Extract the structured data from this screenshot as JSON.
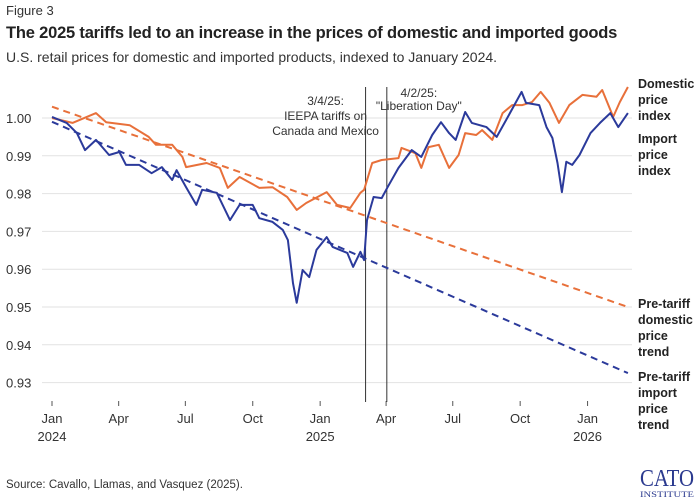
{
  "figure_label": "Figure 3",
  "title": "The 2025 tariffs led to an increase in the prices of domestic and imported goods",
  "subtitle": "U.S. retail prices for domestic and imported products, indexed to January 2024.",
  "source": "Source: Cavallo, Llamas, and Vasquez (2025).",
  "logo": {
    "line1": "CATO",
    "line2": "INSTITUTE",
    "color": "#2B3A8F"
  },
  "chart_data": {
    "type": "line",
    "title": "The 2025 tariffs led to an increase in the prices of domestic and imported goods",
    "xlabel": "",
    "ylabel": "",
    "ylim": [
      0.925,
      1.01
    ],
    "grid": true,
    "legend": "direct labels at right",
    "y_ticks": [
      {
        "value": 1.0,
        "label": "1.00"
      },
      {
        "value": 0.99,
        "label": "0.99"
      },
      {
        "value": 0.98,
        "label": "0.98"
      },
      {
        "value": 0.97,
        "label": "0.97"
      },
      {
        "value": 0.96,
        "label": "0.96"
      },
      {
        "value": 0.95,
        "label": "0.95"
      },
      {
        "value": 0.94,
        "label": "0.94"
      },
      {
        "value": 0.93,
        "label": "0.93"
      }
    ],
    "x_ticks": [
      {
        "date": "2024-01-01",
        "label": "Jan",
        "year": "2024"
      },
      {
        "date": "2024-04-01",
        "label": "Apr",
        "year": ""
      },
      {
        "date": "2024-07-01",
        "label": "Jul",
        "year": ""
      },
      {
        "date": "2024-10-01",
        "label": "Oct",
        "year": ""
      },
      {
        "date": "2025-01-01",
        "label": "Jan",
        "year": "2025"
      },
      {
        "date": "2025-04-01",
        "label": "Apr",
        "year": ""
      },
      {
        "date": "2025-07-01",
        "label": "Jul",
        "year": ""
      },
      {
        "date": "2025-10-01",
        "label": "Oct",
        "year": ""
      },
      {
        "date": "2026-01-01",
        "label": "Jan",
        "year": "2026"
      }
    ],
    "annotations": [
      {
        "date": "2025-03-04",
        "lines": [
          "3/4/25:",
          "IEEPA tariffs on",
          "Canada and Mexico"
        ]
      },
      {
        "date": "2025-04-02",
        "lines": [
          "4/2/25:",
          "\"Liberation Day\""
        ]
      }
    ],
    "series": [
      {
        "name": "Domestic price index",
        "label_lines": [
          "Domestic",
          "price",
          "index"
        ],
        "color": "#E8703A",
        "style": "solid",
        "points": [
          [
            "2024-01-01",
            1.0
          ],
          [
            "2024-01-29",
            0.9987
          ],
          [
            "2024-03-01",
            1.0013
          ],
          [
            "2024-03-15",
            0.9989
          ],
          [
            "2024-04-16",
            0.9981
          ],
          [
            "2024-05-12",
            0.995
          ],
          [
            "2024-05-22",
            0.9929
          ],
          [
            "2024-06-13",
            0.9929
          ],
          [
            "2024-06-27",
            0.9897
          ],
          [
            "2024-07-02",
            0.987
          ],
          [
            "2024-07-30",
            0.9881
          ],
          [
            "2024-08-17",
            0.9868
          ],
          [
            "2024-08-28",
            0.9815
          ],
          [
            "2024-09-13",
            0.9844
          ],
          [
            "2024-10-10",
            0.9815
          ],
          [
            "2024-10-28",
            0.9817
          ],
          [
            "2024-11-17",
            0.9791
          ],
          [
            "2024-11-30",
            0.9757
          ],
          [
            "2024-12-13",
            0.9775
          ],
          [
            "2025-01-10",
            0.9804
          ],
          [
            "2025-01-24",
            0.977
          ],
          [
            "2025-02-11",
            0.9762
          ],
          [
            "2025-02-25",
            0.9802
          ],
          [
            "2025-03-02",
            0.981
          ],
          [
            "2025-03-13",
            0.9881
          ],
          [
            "2025-03-26",
            0.9889
          ],
          [
            "2025-04-18",
            0.9894
          ],
          [
            "2025-04-22",
            0.9921
          ],
          [
            "2025-05-11",
            0.9907
          ],
          [
            "2025-05-19",
            0.9868
          ],
          [
            "2025-05-29",
            0.9923
          ],
          [
            "2025-06-12",
            0.9929
          ],
          [
            "2025-06-26",
            0.9868
          ],
          [
            "2025-07-09",
            0.9902
          ],
          [
            "2025-07-18",
            0.996
          ],
          [
            "2025-08-02",
            0.9955
          ],
          [
            "2025-08-10",
            0.9968
          ],
          [
            "2025-08-24",
            0.9942
          ],
          [
            "2025-09-07",
            1.0013
          ],
          [
            "2025-09-20",
            1.0034
          ],
          [
            "2025-10-04",
            1.0034
          ],
          [
            "2025-10-17",
            1.0042
          ],
          [
            "2025-10-29",
            1.0069
          ],
          [
            "2025-11-10",
            1.004
          ],
          [
            "2025-11-23",
            0.9987
          ],
          [
            "2025-12-07",
            1.0034
          ],
          [
            "2025-12-25",
            1.0061
          ],
          [
            "2026-01-13",
            1.0056
          ],
          [
            "2026-01-21",
            1.0074
          ],
          [
            "2026-02-05",
            1.0003
          ],
          [
            "2026-02-14",
            1.0042
          ],
          [
            "2026-02-25",
            1.0082
          ]
        ]
      },
      {
        "name": "Import price index",
        "label_lines": [
          "Import",
          "price",
          "index"
        ],
        "color": "#2B3A9B",
        "style": "solid",
        "points": [
          [
            "2024-01-01",
            1.0003
          ],
          [
            "2024-01-21",
            0.9987
          ],
          [
            "2024-02-04",
            0.996
          ],
          [
            "2024-02-15",
            0.9915
          ],
          [
            "2024-03-01",
            0.9942
          ],
          [
            "2024-03-19",
            0.9902
          ],
          [
            "2024-04-02",
            0.991
          ],
          [
            "2024-04-11",
            0.9876
          ],
          [
            "2024-04-29",
            0.9876
          ],
          [
            "2024-05-16",
            0.9854
          ],
          [
            "2024-05-30",
            0.987
          ],
          [
            "2024-06-13",
            0.9836
          ],
          [
            "2024-06-19",
            0.9862
          ],
          [
            "2024-07-02",
            0.9817
          ],
          [
            "2024-07-16",
            0.977
          ],
          [
            "2024-07-24",
            0.981
          ],
          [
            "2024-08-13",
            0.9802
          ],
          [
            "2024-08-31",
            0.973
          ],
          [
            "2024-09-13",
            0.977
          ],
          [
            "2024-10-01",
            0.977
          ],
          [
            "2024-10-10",
            0.9735
          ],
          [
            "2024-10-28",
            0.9725
          ],
          [
            "2024-11-11",
            0.9704
          ],
          [
            "2024-11-18",
            0.9677
          ],
          [
            "2024-11-25",
            0.9563
          ],
          [
            "2024-11-30",
            0.9511
          ],
          [
            "2024-12-08",
            0.9598
          ],
          [
            "2024-12-17",
            0.9579
          ],
          [
            "2024-12-27",
            0.9651
          ],
          [
            "2025-01-10",
            0.9685
          ],
          [
            "2025-01-18",
            0.9659
          ],
          [
            "2025-02-07",
            0.9643
          ],
          [
            "2025-02-15",
            0.9606
          ],
          [
            "2025-02-25",
            0.9646
          ],
          [
            "2025-03-02",
            0.9624
          ],
          [
            "2025-03-06",
            0.973
          ],
          [
            "2025-03-15",
            0.9791
          ],
          [
            "2025-03-26",
            0.9788
          ],
          [
            "2025-04-03",
            0.9817
          ],
          [
            "2025-04-18",
            0.9868
          ],
          [
            "2025-05-06",
            0.9915
          ],
          [
            "2025-05-19",
            0.9897
          ],
          [
            "2025-06-03",
            0.9955
          ],
          [
            "2025-06-15",
            0.9989
          ],
          [
            "2025-06-26",
            0.996
          ],
          [
            "2025-07-05",
            0.9942
          ],
          [
            "2025-07-18",
            1.0016
          ],
          [
            "2025-07-27",
            0.9987
          ],
          [
            "2025-08-16",
            0.9976
          ],
          [
            "2025-08-30",
            0.995
          ],
          [
            "2025-09-12",
            0.9995
          ],
          [
            "2025-10-03",
            1.0069
          ],
          [
            "2025-10-09",
            1.004
          ],
          [
            "2025-10-27",
            1.0034
          ],
          [
            "2025-11-06",
            0.9976
          ],
          [
            "2025-11-14",
            0.9947
          ],
          [
            "2025-11-21",
            0.9881
          ],
          [
            "2025-11-27",
            0.9804
          ],
          [
            "2025-12-03",
            0.9884
          ],
          [
            "2025-12-11",
            0.9876
          ],
          [
            "2025-12-21",
            0.9902
          ],
          [
            "2026-01-05",
            0.996
          ],
          [
            "2026-01-18",
            0.9987
          ],
          [
            "2026-02-01",
            1.0013
          ],
          [
            "2026-02-12",
            0.9976
          ],
          [
            "2026-02-25",
            1.0013
          ]
        ]
      },
      {
        "name": "Pre-tariff domestic price trend",
        "label_lines": [
          "Pre-tariff",
          "domestic",
          "price",
          "trend"
        ],
        "color": "#E8703A",
        "style": "dashed",
        "points": [
          [
            "2024-01-01",
            1.003
          ],
          [
            "2026-02-25",
            0.95
          ]
        ]
      },
      {
        "name": "Pre-tariff import price trend",
        "label_lines": [
          "Pre-tariff",
          "import",
          "price",
          "trend"
        ],
        "color": "#2B3A9B",
        "style": "dashed",
        "points": [
          [
            "2024-01-01",
            0.999
          ],
          [
            "2026-02-25",
            0.9325
          ]
        ]
      }
    ]
  }
}
